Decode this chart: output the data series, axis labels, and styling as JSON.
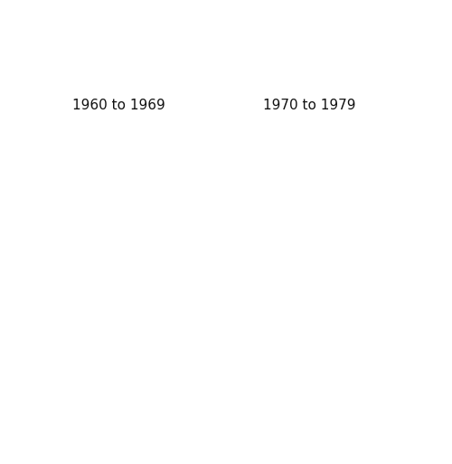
{
  "title_left": "1960 to 1969",
  "title_right": "1970 to 1979",
  "face_color": "#e8f0e0",
  "edge_color": "#444444",
  "background_color": "#ffffff",
  "line_width": 0.4,
  "title_fontsize": 11,
  "title_color": "#111111",
  "figsize": [
    5.0,
    5.13
  ],
  "dpi": 100
}
